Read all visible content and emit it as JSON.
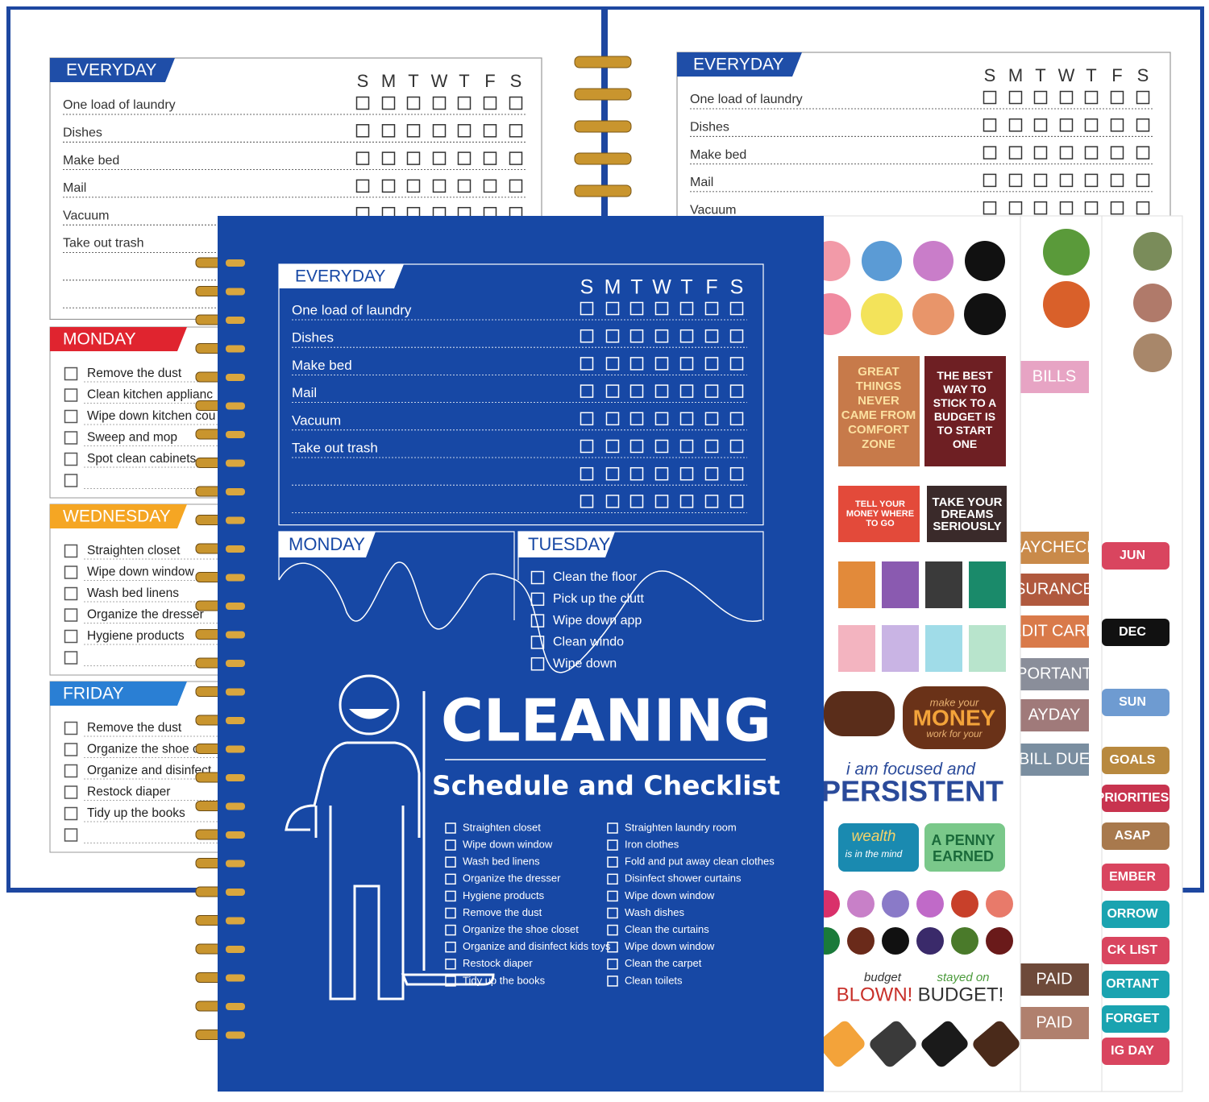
{
  "back_left": {
    "everyday": {
      "title": "EVERYDAY",
      "days": [
        "S",
        "M",
        "T",
        "W",
        "T",
        "F",
        "S"
      ],
      "tasks": [
        "One load of laundry",
        "Dishes",
        "Make bed",
        "Mail",
        "Vacuum",
        "Take out trash"
      ]
    },
    "monday": {
      "title": "MONDAY",
      "tasks": [
        "Remove the dust",
        "Clean kitchen applianc",
        "Wipe down kitchen cou",
        "Sweep and mop",
        "Spot clean cabinets"
      ]
    },
    "wednesday": {
      "title": "WEDNESDAY",
      "tasks": [
        "Straighten closet",
        "Wipe down window",
        "Wash bed linens",
        "Organize the dresser",
        "Hygiene products"
      ]
    },
    "friday": {
      "title": "FRIDAY",
      "tasks": [
        "Remove the dust",
        "Organize the shoe clo",
        "Organize and disinfect",
        "Restock diaper",
        "Tidy up the books"
      ]
    }
  },
  "back_right": {
    "everyday": {
      "title": "EVERYDAY",
      "days": [
        "S",
        "M",
        "T",
        "W",
        "T",
        "F",
        "S"
      ],
      "tasks": [
        "One load of laundry",
        "Dishes",
        "Make bed",
        "Mail",
        "Vacuum"
      ]
    }
  },
  "cover": {
    "everyday": {
      "title": "EVERYDAY",
      "days": [
        "S",
        "M",
        "T",
        "W",
        "T",
        "F",
        "S"
      ],
      "tasks": [
        "One load of laundry",
        "Dishes",
        "Make bed",
        "Mail",
        "Vacuum",
        "Take out trash"
      ]
    },
    "monday": {
      "title": "MONDAY"
    },
    "tuesday": {
      "title": "TUESDAY",
      "tasks": [
        "Clean the floor",
        "Pick up the clutt",
        "Wipe down app",
        "Clean windo",
        "Wipe down"
      ]
    },
    "title": "CLEANING",
    "subtitle": "Schedule and Checklist",
    "checklist_left": [
      "Straighten closet",
      "Wipe down window",
      "Wash bed linens",
      "Organize the dresser",
      "Hygiene products",
      "Remove the dust",
      "Organize the shoe closet",
      "Organize and disinfect kids toys",
      "Restock diaper",
      "Tidy up the books"
    ],
    "checklist_right": [
      "Straighten laundry room",
      "Iron clothes",
      "Fold and put away clean clothes",
      "Disinfect shower curtains",
      "Wipe down window",
      "Wash dishes",
      "Clean the curtains",
      "Wipe down window",
      "Clean the carpet",
      "Clean toilets"
    ]
  },
  "stickers": {
    "quote_1": "GREAT THINGS NEVER CAME FROM COMFORT ZONE",
    "quote_2": "THE BEST WAY TO STICK TO A BUDGET IS TO START ONE",
    "quote_3": "TELL YOUR MONEY WHERE TO GO",
    "quote_4": "TAKE YOUR DREAMS SERIOUSLY",
    "money_small": "make your",
    "money_big": "MONEY",
    "money_tail": "work for your",
    "focused": "i am focused and",
    "persistent": "PERSISTENT",
    "wealth": "wealth",
    "wealth_tail": "is in the mind",
    "penny": "A PENNY EARNED",
    "blown_small": "budget",
    "blown": "BLOWN!",
    "stayed_small": "stayed on",
    "budget": "BUDGET!",
    "middle_labels": [
      "BILLS",
      "PAYCHECK",
      "SURANCE",
      "EDIT CARD",
      "PORTANT",
      "AYDAY",
      "BILL DUE",
      "PAID",
      "PAID"
    ],
    "right_labels": [
      "JUN",
      "DEC",
      "SUN",
      "GOALS",
      "PRIORITIES",
      "ASAP",
      "EMBER",
      "ORROW",
      "CK LIST",
      "ORTANT",
      "FORGET",
      "IG DAY"
    ]
  }
}
